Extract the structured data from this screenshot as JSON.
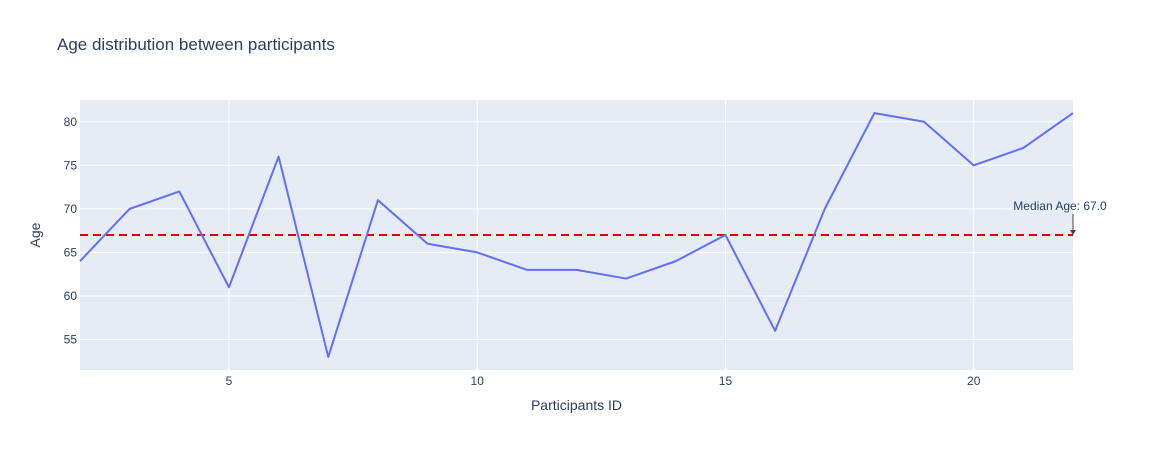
{
  "chart_data": {
    "type": "line",
    "title": "Age distribution between participants",
    "xlabel": "Participants ID",
    "ylabel": "Age",
    "xlim": [
      2,
      22
    ],
    "ylim": [
      51.5,
      82.5
    ],
    "xticks": [
      5,
      10,
      15,
      20
    ],
    "yticks": [
      55,
      60,
      65,
      70,
      75,
      80
    ],
    "grid": true,
    "series": [
      {
        "x": [
          2,
          3,
          4,
          5,
          6,
          7,
          8,
          9,
          10,
          11,
          12,
          13,
          14,
          15,
          16,
          17,
          18,
          19,
          20,
          21,
          22
        ],
        "values": [
          64,
          70,
          72,
          61,
          76,
          53,
          71,
          66,
          65,
          63,
          63,
          62,
          64,
          67,
          56,
          70,
          81,
          80,
          75,
          77,
          81
        ],
        "color": "#636efa"
      }
    ],
    "reference_line": {
      "y": 67.0,
      "color": "#e00000",
      "style": "dashed"
    },
    "annotation": {
      "text": "Median Age: 67.0",
      "x": 22,
      "y": 67.0
    }
  },
  "colors": {
    "plot_bg": "#e5ecf6",
    "grid": "#ffffff",
    "text": "#2a3f5f"
  }
}
